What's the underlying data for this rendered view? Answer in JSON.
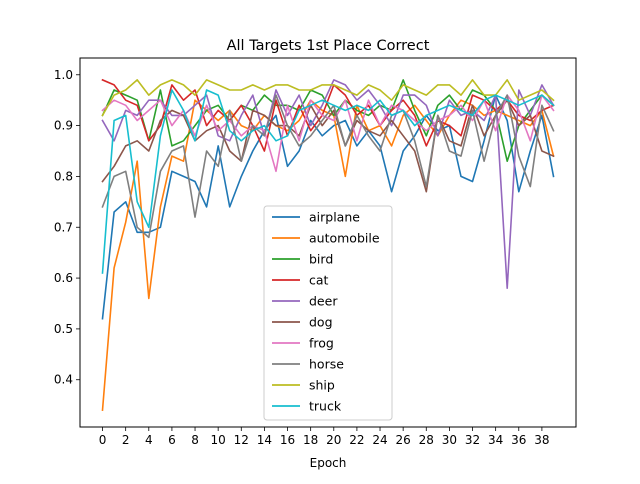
{
  "chart_data": {
    "type": "line",
    "title": "All Targets 1st Place Correct",
    "xlabel": "Epoch",
    "ylabel": "",
    "xlim": [
      -1.95,
      40.95
    ],
    "ylim": [
      0.307,
      1.033
    ],
    "x_ticks": [
      "0",
      "2",
      "4",
      "6",
      "8",
      "10",
      "12",
      "14",
      "16",
      "18",
      "20",
      "22",
      "24",
      "26",
      "28",
      "30",
      "32",
      "34",
      "36",
      "38"
    ],
    "y_ticks": [
      "0.4",
      "0.5",
      "0.6",
      "0.7",
      "0.8",
      "0.9",
      "1.0"
    ],
    "grid": false,
    "legend_position": "lower center",
    "x": [
      0,
      1,
      2,
      3,
      4,
      5,
      6,
      7,
      8,
      9,
      10,
      11,
      12,
      13,
      14,
      15,
      16,
      17,
      18,
      19,
      20,
      21,
      22,
      23,
      24,
      25,
      26,
      27,
      28,
      29,
      30,
      31,
      32,
      33,
      34,
      35,
      36,
      37,
      38,
      39
    ],
    "series": [
      {
        "name": "airplane",
        "color": "#1f77b4",
        "values": [
          0.52,
          0.73,
          0.75,
          0.69,
          0.69,
          0.7,
          0.81,
          0.8,
          0.79,
          0.74,
          0.86,
          0.74,
          0.8,
          0.85,
          0.89,
          0.92,
          0.82,
          0.85,
          0.91,
          0.88,
          0.9,
          0.91,
          0.86,
          0.89,
          0.86,
          0.77,
          0.85,
          0.88,
          0.92,
          0.89,
          0.9,
          0.8,
          0.79,
          0.87,
          0.96,
          0.91,
          0.77,
          0.85,
          0.92,
          0.8
        ]
      },
      {
        "name": "automobile",
        "color": "#ff7f0e",
        "values": [
          0.34,
          0.62,
          0.71,
          0.83,
          0.56,
          0.74,
          0.84,
          0.83,
          0.95,
          0.93,
          0.91,
          0.93,
          0.9,
          0.89,
          0.92,
          0.9,
          0.89,
          0.91,
          0.95,
          0.93,
          0.92,
          0.8,
          0.94,
          0.89,
          0.9,
          0.86,
          0.92,
          0.94,
          0.91,
          0.88,
          0.92,
          0.95,
          0.94,
          0.92,
          0.93,
          0.92,
          0.91,
          0.9,
          0.93,
          0.84
        ]
      },
      {
        "name": "bird",
        "color": "#2ca02c",
        "values": [
          0.92,
          0.97,
          0.96,
          0.95,
          0.87,
          0.97,
          0.86,
          0.87,
          0.9,
          0.93,
          0.94,
          0.91,
          0.94,
          0.93,
          0.96,
          0.94,
          0.94,
          0.93,
          0.97,
          0.96,
          0.92,
          0.95,
          0.93,
          0.92,
          0.94,
          0.93,
          0.99,
          0.93,
          0.88,
          0.94,
          0.96,
          0.93,
          0.97,
          0.96,
          0.93,
          0.83,
          0.9,
          0.93,
          0.96,
          0.94
        ]
      },
      {
        "name": "cat",
        "color": "#d62728",
        "values": [
          0.99,
          0.98,
          0.95,
          0.94,
          0.87,
          0.9,
          0.98,
          0.95,
          0.97,
          0.9,
          0.93,
          0.91,
          0.94,
          0.9,
          0.85,
          0.95,
          0.88,
          0.94,
          0.89,
          0.92,
          0.98,
          0.96,
          0.92,
          0.94,
          0.9,
          0.93,
          0.95,
          0.92,
          0.86,
          0.91,
          0.9,
          0.88,
          0.96,
          0.95,
          0.93,
          0.95,
          0.92,
          0.91,
          0.93,
          0.94
        ]
      },
      {
        "name": "deer",
        "color": "#9467bd",
        "values": [
          0.91,
          0.87,
          0.93,
          0.92,
          0.95,
          0.95,
          0.92,
          0.92,
          0.94,
          0.96,
          0.88,
          0.87,
          0.92,
          0.96,
          0.88,
          0.97,
          0.92,
          0.96,
          0.9,
          0.94,
          0.99,
          0.98,
          0.95,
          0.97,
          0.94,
          0.9,
          0.96,
          0.96,
          0.94,
          0.88,
          0.95,
          0.92,
          0.93,
          0.91,
          0.96,
          0.58,
          0.97,
          0.92,
          0.98,
          0.94
        ]
      },
      {
        "name": "dog",
        "color": "#8c564b",
        "values": [
          0.79,
          0.82,
          0.86,
          0.87,
          0.85,
          0.91,
          0.93,
          0.92,
          0.87,
          0.89,
          0.9,
          0.85,
          0.83,
          0.93,
          0.92,
          0.9,
          0.9,
          0.88,
          0.94,
          0.9,
          0.93,
          0.86,
          0.91,
          0.89,
          0.88,
          0.91,
          0.88,
          0.85,
          0.77,
          0.92,
          0.87,
          0.86,
          0.94,
          0.88,
          0.92,
          0.95,
          0.9,
          0.92,
          0.85,
          0.84
        ]
      },
      {
        "name": "frog",
        "color": "#e377c2",
        "values": [
          0.93,
          0.95,
          0.94,
          0.91,
          0.93,
          0.95,
          0.9,
          0.93,
          0.88,
          0.94,
          0.89,
          0.91,
          0.88,
          0.9,
          0.89,
          0.81,
          0.94,
          0.87,
          0.95,
          0.92,
          0.91,
          0.95,
          0.87,
          0.95,
          0.9,
          0.94,
          0.93,
          0.91,
          0.89,
          0.91,
          0.92,
          0.94,
          0.91,
          0.95,
          0.89,
          0.96,
          0.93,
          0.87,
          0.96,
          0.93
        ]
      },
      {
        "name": "horse",
        "color": "#7f7f7f",
        "values": [
          0.74,
          0.8,
          0.81,
          0.7,
          0.68,
          0.81,
          0.85,
          0.86,
          0.72,
          0.85,
          0.82,
          0.93,
          0.83,
          0.9,
          0.88,
          0.96,
          0.9,
          0.86,
          0.88,
          0.91,
          0.94,
          0.86,
          0.92,
          0.88,
          0.85,
          0.92,
          0.93,
          0.87,
          0.78,
          0.92,
          0.85,
          0.84,
          0.93,
          0.83,
          0.92,
          0.96,
          0.84,
          0.78,
          0.94,
          0.89
        ]
      },
      {
        "name": "ship",
        "color": "#bcbd22",
        "values": [
          0.92,
          0.96,
          0.97,
          0.99,
          0.96,
          0.98,
          0.99,
          0.98,
          0.96,
          0.99,
          0.98,
          0.97,
          0.97,
          0.98,
          0.97,
          0.98,
          0.98,
          0.97,
          0.97,
          0.98,
          0.98,
          0.97,
          0.96,
          0.98,
          0.97,
          0.95,
          0.98,
          0.97,
          0.96,
          0.98,
          0.98,
          0.96,
          0.99,
          0.96,
          0.96,
          0.99,
          0.95,
          0.96,
          0.97,
          0.95
        ]
      },
      {
        "name": "truck",
        "color": "#17becf",
        "values": [
          0.61,
          0.91,
          0.92,
          0.75,
          0.7,
          0.88,
          0.97,
          0.93,
          0.87,
          0.97,
          0.96,
          0.89,
          0.87,
          0.89,
          0.9,
          0.87,
          0.88,
          0.93,
          0.94,
          0.95,
          0.94,
          0.93,
          0.94,
          0.93,
          0.95,
          0.92,
          0.93,
          0.9,
          0.92,
          0.93,
          0.94,
          0.93,
          0.92,
          0.95,
          0.96,
          0.95,
          0.94,
          0.95,
          0.96,
          0.94
        ]
      }
    ]
  }
}
